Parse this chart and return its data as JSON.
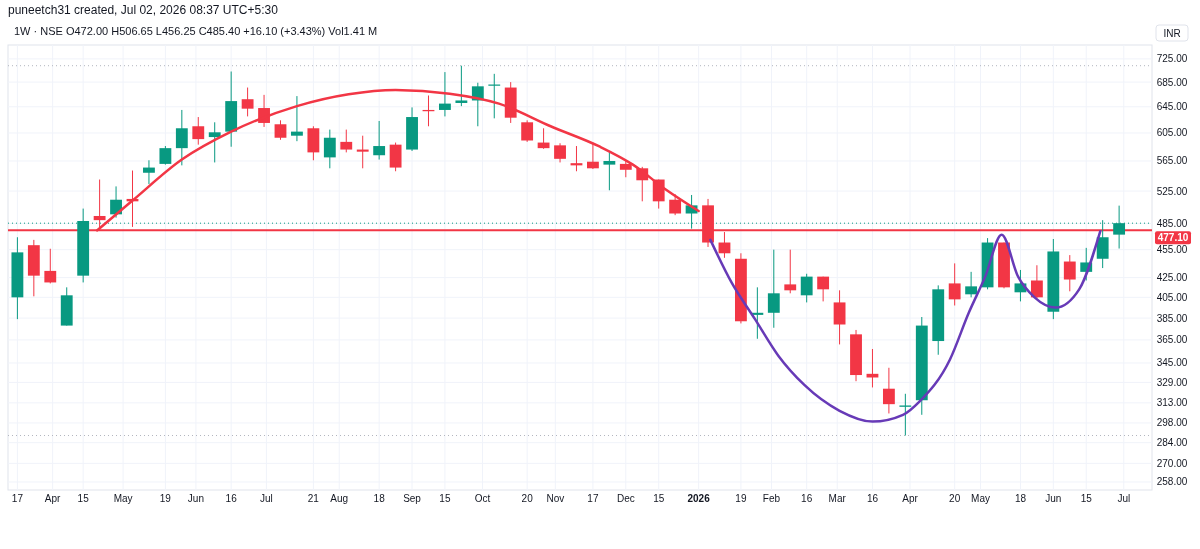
{
  "chart_data": {
    "type": "candlestick",
    "subtitle": "1W · NSE  O472.00  H506.65  L456.25  C485.40  +16.10 (+3.43%)  Vol1.41 M",
    "annotations": [
      "puneetch31 created, Jul 02, 2026 08:37 UTC+5:30"
    ],
    "ylabel": "INR",
    "log": true,
    "grid": true,
    "x": [
      "2025-03-17",
      "2025-03-24",
      "2025-03-31",
      "2025-04-07",
      "2025-04-14",
      "2025-04-21",
      "2025-04-28",
      "2025-05-05",
      "2025-05-12",
      "2025-05-19",
      "2025-05-26",
      "2025-06-02",
      "2025-06-09",
      "2025-06-16",
      "2025-06-23",
      "2025-06-30",
      "2025-07-07",
      "2025-07-14",
      "2025-07-21",
      "2025-07-28",
      "2025-08-04",
      "2025-08-11",
      "2025-08-18",
      "2025-08-25",
      "2025-09-01",
      "2025-09-08",
      "2025-09-15",
      "2025-09-22",
      "2025-09-29",
      "2025-10-06",
      "2025-10-13",
      "2025-10-20",
      "2025-10-27",
      "2025-11-03",
      "2025-11-10",
      "2025-11-17",
      "2025-11-24",
      "2025-12-01",
      "2025-12-08",
      "2025-12-15",
      "2025-12-22",
      "2025-12-29",
      "2026-01-05",
      "2026-01-12",
      "2026-01-19",
      "2026-01-26",
      "2026-02-02",
      "2026-02-09",
      "2026-02-16",
      "2026-02-23",
      "2026-03-02",
      "2026-03-09",
      "2026-03-16",
      "2026-03-23",
      "2026-03-30",
      "2026-04-06",
      "2026-04-13",
      "2026-04-20",
      "2026-04-27",
      "2026-05-04",
      "2026-05-11",
      "2026-05-18",
      "2026-05-25",
      "2026-06-01",
      "2026-06-08",
      "2026-06-15",
      "2026-06-22",
      "2026-06-29"
    ],
    "ohlc": [
      [
        405,
        469,
        384,
        452
      ],
      [
        460,
        466,
        406,
        427
      ],
      [
        432,
        456,
        419,
        420
      ],
      [
        378,
        415,
        378,
        407
      ],
      [
        427,
        503,
        420,
        488
      ],
      [
        494,
        540,
        478,
        489
      ],
      [
        496,
        531,
        492,
        514
      ],
      [
        515,
        552,
        481,
        512
      ],
      [
        549,
        566,
        534,
        556
      ],
      [
        561,
        586,
        560,
        583
      ],
      [
        583,
        640,
        559,
        612
      ],
      [
        615,
        629,
        588,
        596
      ],
      [
        599,
        621,
        563,
        606
      ],
      [
        607,
        703,
        585,
        654
      ],
      [
        657,
        676,
        630,
        642
      ],
      [
        643,
        664,
        614,
        620
      ],
      [
        618,
        624,
        595,
        598
      ],
      [
        601,
        662,
        593,
        607
      ],
      [
        612,
        615,
        566,
        577
      ],
      [
        570,
        610,
        555,
        598
      ],
      [
        592,
        610,
        577,
        581
      ],
      [
        581,
        601,
        555,
        578
      ],
      [
        573,
        623,
        567,
        586
      ],
      [
        588,
        591,
        551,
        556
      ],
      [
        581,
        644,
        579,
        629
      ],
      [
        640,
        663,
        615,
        638
      ],
      [
        640,
        702,
        630,
        650
      ],
      [
        651,
        713,
        646,
        655
      ],
      [
        655,
        684,
        615,
        678
      ],
      [
        679,
        699,
        627,
        681
      ],
      [
        676,
        685,
        620,
        628
      ],
      [
        621,
        624,
        592,
        594
      ],
      [
        591,
        612,
        582,
        583
      ],
      [
        587,
        590,
        563,
        568
      ],
      [
        562,
        586,
        551,
        559
      ],
      [
        564,
        591,
        554,
        555
      ],
      [
        560,
        579,
        526,
        565
      ],
      [
        561,
        566,
        543,
        553
      ],
      [
        555,
        557,
        512,
        539
      ],
      [
        540,
        540,
        503,
        512
      ],
      [
        514,
        521,
        495,
        497
      ],
      [
        497,
        520,
        479,
        507
      ],
      [
        507,
        515,
        458,
        463
      ],
      [
        463,
        475,
        446,
        451
      ],
      [
        445,
        451,
        380,
        382
      ],
      [
        388,
        415,
        366,
        390
      ],
      [
        390,
        455,
        376,
        409
      ],
      [
        418,
        455,
        409,
        412
      ],
      [
        407,
        429,
        400,
        426
      ],
      [
        426,
        426,
        401,
        413
      ],
      [
        400,
        412,
        361,
        379
      ],
      [
        370,
        374,
        330,
        335
      ],
      [
        336,
        357,
        325,
        333
      ],
      [
        324,
        341,
        305,
        312
      ],
      [
        310,
        320,
        289,
        311
      ],
      [
        315,
        386,
        304,
        378
      ],
      [
        364,
        417,
        352,
        413
      ],
      [
        419,
        440,
        397,
        403
      ],
      [
        408,
        431,
        405,
        416
      ],
      [
        415,
        468,
        413,
        463
      ],
      [
        463,
        463,
        414,
        415
      ],
      [
        410,
        433,
        401,
        419
      ],
      [
        422,
        438,
        404,
        405
      ],
      [
        391,
        467,
        384,
        453
      ],
      [
        442,
        449,
        411,
        423
      ],
      [
        431,
        457,
        422,
        441
      ],
      [
        445,
        489,
        435,
        469
      ],
      [
        472,
        506.65,
        456.25,
        485.4
      ]
    ],
    "colors": [
      "#089981",
      "#f23645",
      "#f23645",
      "#089981",
      "#089981",
      "#f23645",
      "#089981",
      "#f23645",
      "#089981",
      "#089981",
      "#089981",
      "#f23645",
      "#089981",
      "#089981",
      "#f23645",
      "#f23645",
      "#f23645",
      "#089981",
      "#f23645",
      "#089981",
      "#f23645",
      "#f23645",
      "#089981",
      "#f23645",
      "#089981",
      "#f23645",
      "#089981",
      "#089981",
      "#089981",
      "#089981",
      "#f23645",
      "#f23645",
      "#f23645",
      "#f23645",
      "#f23645",
      "#f23645",
      "#089981",
      "#f23645",
      "#f23645",
      "#f23645",
      "#f23645",
      "#089981",
      "#f23645",
      "#f23645",
      "#f23645",
      "#089981",
      "#089981",
      "#f23645",
      "#089981",
      "#f23645",
      "#f23645",
      "#f23645",
      "#f23645",
      "#f23645",
      "#089981",
      "#089981",
      "#089981",
      "#f23645",
      "#089981",
      "#089981",
      "#f23645",
      "#089981",
      "#f23645",
      "#089981",
      "#f23645",
      "#089981",
      "#089981",
      "#089981"
    ],
    "series": [
      {
        "type": "line",
        "color": "#f23645",
        "x": [
          "2025-04-20",
          "2025-05-05",
          "2025-05-26",
          "2025-06-16",
          "2025-07-14",
          "2025-08-05",
          "2025-08-25",
          "2025-09-17",
          "2025-10-08",
          "2025-10-30",
          "2025-11-20",
          "2025-12-04",
          "2025-12-18",
          "2026-01-01"
        ],
        "values": [
          477,
          513,
          567,
          607,
          646,
          665,
          672,
          666,
          650,
          615,
          585,
          560,
          527,
          500
        ]
      },
      {
        "type": "line",
        "color": "#673ab7",
        "x": [
          "2026-01-06",
          "2026-01-15",
          "2026-01-25",
          "2026-02-04",
          "2026-02-15",
          "2026-03-02",
          "2026-03-16",
          "2026-03-29",
          "2026-04-05",
          "2026-04-18",
          "2026-04-26",
          "2026-05-03",
          "2026-05-10",
          "2026-05-17",
          "2026-05-24",
          "2026-06-02",
          "2026-06-12",
          "2026-06-21"
        ],
        "values": [
          466,
          420,
          384,
          351,
          327,
          307,
          299,
          304,
          314,
          348,
          390,
          426,
          472,
          426,
          405,
          395,
          413,
          476
        ]
      }
    ],
    "ref_lines": [
      {
        "axis": "y",
        "value": 477.1,
        "label": "477.10",
        "color": "#f23645"
      },
      {
        "axis": "y",
        "value": 713,
        "color": "#b2b5be",
        "line_style": "dotted"
      },
      {
        "axis": "y",
        "value": 485.4,
        "color": "#089981",
        "line_style": "dotted"
      },
      {
        "axis": "y",
        "value": 289,
        "color": "#b2b5be",
        "line_style": "dotted"
      }
    ],
    "xlim": [
      "2025-03-13",
      "2026-07-13"
    ],
    "xticks": [
      {
        "value": "2025-03-17",
        "label": "17"
      },
      {
        "value": "2025-04-01",
        "label": "Apr"
      },
      {
        "value": "2025-04-14",
        "label": "15"
      },
      {
        "value": "2025-05-01",
        "label": "May"
      },
      {
        "value": "2025-05-19",
        "label": "19"
      },
      {
        "value": "2025-06-01",
        "label": "Jun"
      },
      {
        "value": "2025-06-16",
        "label": "16"
      },
      {
        "value": "2025-07-01",
        "label": "Jul"
      },
      {
        "value": "2025-07-21",
        "label": "21"
      },
      {
        "value": "2025-08-01",
        "label": "Aug"
      },
      {
        "value": "2025-08-18",
        "label": "18"
      },
      {
        "value": "2025-09-01",
        "label": "Sep"
      },
      {
        "value": "2025-09-15",
        "label": "15"
      },
      {
        "value": "2025-10-01",
        "label": "Oct"
      },
      {
        "value": "2025-10-20",
        "label": "20"
      },
      {
        "value": "2025-11-01",
        "label": "Nov"
      },
      {
        "value": "2025-11-17",
        "label": "17"
      },
      {
        "value": "2025-12-01",
        "label": "Dec"
      },
      {
        "value": "2025-12-15",
        "label": "15"
      },
      {
        "value": "2026-01-01",
        "label": "2026"
      },
      {
        "value": "2026-01-19",
        "label": "19"
      },
      {
        "value": "2026-02-01",
        "label": "Feb"
      },
      {
        "value": "2026-02-16",
        "label": "16"
      },
      {
        "value": "2026-03-01",
        "label": "Mar"
      },
      {
        "value": "2026-03-16",
        "label": "16"
      },
      {
        "value": "2026-04-01",
        "label": "Apr"
      },
      {
        "value": "2026-04-20",
        "label": "20"
      },
      {
        "value": "2026-05-01",
        "label": "May"
      },
      {
        "value": "2026-05-18",
        "label": "18"
      },
      {
        "value": "2026-06-01",
        "label": "Jun"
      },
      {
        "value": "2026-06-15",
        "label": "15"
      },
      {
        "value": "2026-07-01",
        "label": "Jul"
      }
    ],
    "ylim": [
      253,
      750
    ],
    "yticks": [
      {
        "value": 725,
        "label": "725.00"
      },
      {
        "value": 685,
        "label": "685.00"
      },
      {
        "value": 645,
        "label": "645.00"
      },
      {
        "value": 605,
        "label": "605.00"
      },
      {
        "value": 565,
        "label": "565.00"
      },
      {
        "value": 525,
        "label": "525.00"
      },
      {
        "value": 485,
        "label": "485.00"
      },
      {
        "value": 455,
        "label": "455.00"
      },
      {
        "value": 425,
        "label": "425.00"
      },
      {
        "value": 405,
        "label": "405.00"
      },
      {
        "value": 385,
        "label": "385.00"
      },
      {
        "value": 365,
        "label": "365.00"
      },
      {
        "value": 345,
        "label": "345.00"
      },
      {
        "value": 329,
        "label": "329.00"
      },
      {
        "value": 313,
        "label": "313.00"
      },
      {
        "value": 298,
        "label": "298.00"
      },
      {
        "value": 284,
        "label": "284.00"
      },
      {
        "value": 270,
        "label": "270.00"
      },
      {
        "value": 258,
        "label": "258.00"
      }
    ]
  }
}
